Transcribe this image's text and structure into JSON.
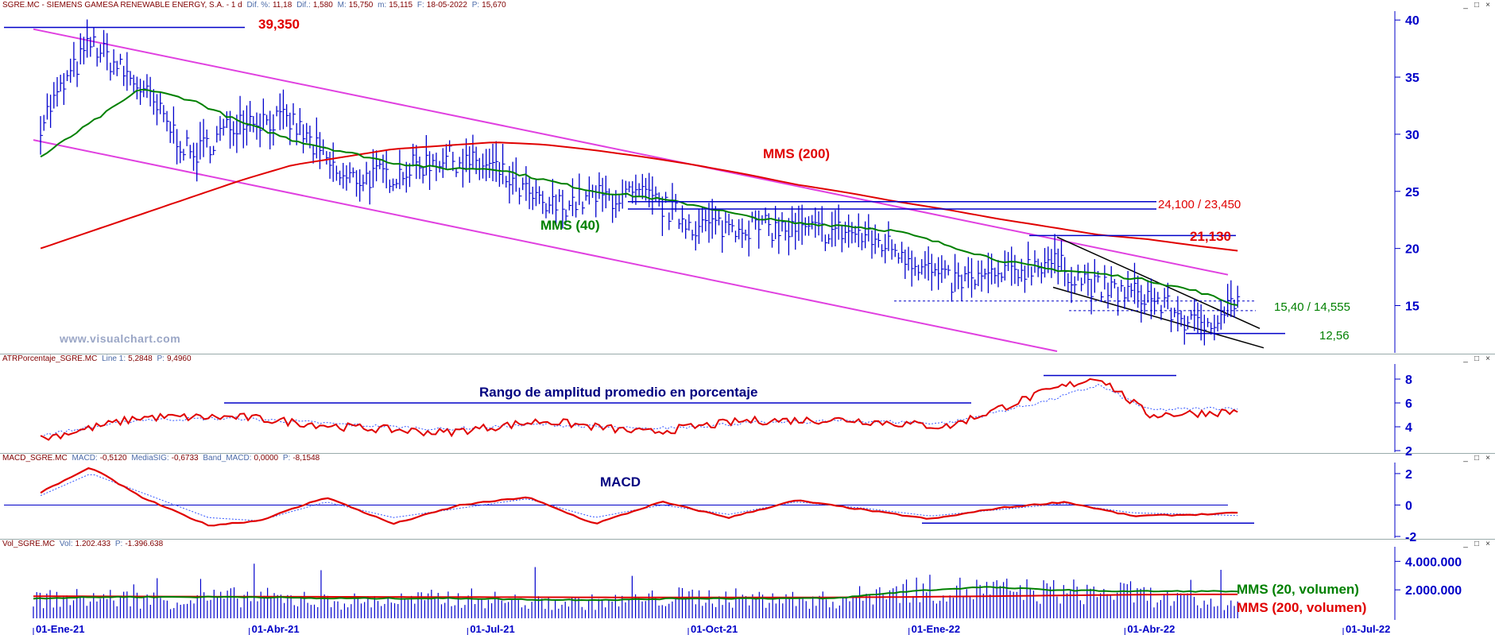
{
  "panes": [
    {
      "id": "price",
      "header": {
        "title": "SGRE.MC - SIEMENS GAMESA RENEWABLE ENERGY, S.A. - 1 d",
        "items": [
          {
            "label": "Dif. %:",
            "value": "11,18"
          },
          {
            "label": "Dif.:",
            "value": "1,580"
          },
          {
            "label": "M:",
            "value": "15,750"
          },
          {
            "label": "m:",
            "value": "15,115"
          },
          {
            "label": "F:",
            "value": "18-05-2022"
          },
          {
            "label": "P:",
            "value": "15,670"
          }
        ]
      },
      "y_ticks": [
        "40",
        "35",
        "30",
        "25",
        "20",
        "15"
      ]
    },
    {
      "id": "atr",
      "header": {
        "title": "ATRPorcentaje_SGRE.MC",
        "items": [
          {
            "label": "Line 1:",
            "value": "5,2848"
          },
          {
            "label": "P:",
            "value": "9,4960"
          }
        ]
      },
      "y_ticks": [
        "8",
        "6",
        "4",
        "2"
      ]
    },
    {
      "id": "macd",
      "header": {
        "title": "MACD_SGRE.MC",
        "items": [
          {
            "label": "MACD:",
            "value": "-0,5120"
          },
          {
            "label": "MediaSIG:",
            "value": "-0,6733"
          },
          {
            "label": "Band_MACD:",
            "value": "0,0000"
          },
          {
            "label": "P:",
            "value": "-8,1548"
          }
        ]
      },
      "y_ticks": [
        "2",
        "0",
        "-2"
      ]
    },
    {
      "id": "volume",
      "header": {
        "title": "Vol_SGRE.MC",
        "items": [
          {
            "label": "Vol:",
            "value": "1.202.433"
          },
          {
            "label": "P:",
            "value": "-1.396.638"
          }
        ]
      },
      "y_ticks": [
        "4.000.000",
        "2.000.000"
      ]
    }
  ],
  "window_buttons": [
    "_",
    "□",
    "×"
  ],
  "x_axis_labels": [
    "01-Ene-21",
    "01-Abr-21",
    "01-Jul-21",
    "01-Oct-21",
    "01-Ene-22",
    "01-Abr-22",
    "01-Jul-22"
  ],
  "watermark": "www.visualchart.com",
  "annotations": {
    "price_top": "39,350",
    "mms200": "MMS (200)",
    "mms40": "MMS (40)",
    "resistance": "24,100 / 23,450",
    "level_21": "21,130",
    "support": "15,40 / 14,555",
    "low": "12,56",
    "atr_title": "Rango de amplitud promedio en porcentaje",
    "macd_title": "MACD",
    "vol_mms20": "MMS (20, volumen)",
    "vol_mms200": "MMS (200, volumen)"
  },
  "colors": {
    "price_bars": "#0000cc",
    "mms40": "#008000",
    "mms200": "#e00000",
    "channel": "#e040e0",
    "levels": "#0000c8",
    "indicator_main": "#e00000",
    "indicator_signal": "#3355ff"
  },
  "chart_data": [
    {
      "type": "line",
      "title": "SGRE.MC - SIEMENS GAMESA RENEWABLE ENERGY, S.A. - 1 d",
      "x": [
        "2021-01-04",
        "2021-01-25",
        "2021-02-15",
        "2021-03-08",
        "2021-03-29",
        "2021-04-19",
        "2021-05-10",
        "2021-05-31",
        "2021-06-21",
        "2021-07-12",
        "2021-08-02",
        "2021-08-23",
        "2021-09-13",
        "2021-10-04",
        "2021-10-25",
        "2021-11-15",
        "2021-12-06",
        "2021-12-27",
        "2022-01-17",
        "2022-02-07",
        "2022-02-28",
        "2022-03-21",
        "2022-04-11",
        "2022-05-02",
        "2022-05-18"
      ],
      "series": [
        {
          "name": "",
          "values": [
            31.0,
            38.0,
            34.0,
            28.0,
            31.5,
            31.0,
            26.0,
            26.5,
            28.0,
            27.0,
            23.5,
            24.5,
            24.5,
            22.0,
            22.0,
            21.5,
            21.5,
            20.0,
            17.0,
            17.5,
            19.0,
            16.5,
            15.8,
            13.0,
            15.67
          ]
        },
        {
          "name": "MMS (40)",
          "values": [
            28.0,
            31.0,
            34.0,
            33.0,
            31.0,
            29.5,
            28.5,
            27.5,
            27.0,
            27.0,
            26.0,
            25.0,
            24.5,
            23.8,
            22.8,
            22.2,
            22.0,
            21.5,
            20.3,
            19.0,
            18.2,
            17.8,
            17.2,
            16.2,
            15.0
          ]
        },
        {
          "name": "MMS (200)",
          "values": [
            20.0,
            21.5,
            23.0,
            24.5,
            26.0,
            27.3,
            28.0,
            28.7,
            29.0,
            29.3,
            29.1,
            28.6,
            28.0,
            27.3,
            26.5,
            25.6,
            24.9,
            24.1,
            23.4,
            22.6,
            21.9,
            21.2,
            20.8,
            20.2,
            19.8
          ]
        }
      ],
      "ylim": [
        11,
        40.5
      ],
      "levels": [
        39.35,
        24.1,
        23.45,
        21.13,
        15.4,
        14.555,
        12.56
      ],
      "grid": false
    },
    {
      "type": "line",
      "title": "ATRPorcentaje_SGRE.MC",
      "x": [
        "2021-01-04",
        "2021-02-15",
        "2021-03-29",
        "2021-05-10",
        "2021-06-21",
        "2021-08-02",
        "2021-09-13",
        "2021-10-25",
        "2021-12-06",
        "2022-01-17",
        "2022-02-28",
        "2022-03-21",
        "2022-04-11",
        "2022-05-18"
      ],
      "series": [
        {
          "name": "",
          "values": [
            3.0,
            4.8,
            4.8,
            4.0,
            3.5,
            4.5,
            3.5,
            4.5,
            4.6,
            4.0,
            7.0,
            8.2,
            5.0,
            5.28
          ]
        },
        {
          "name": "",
          "values": [
            3.3,
            4.6,
            4.7,
            4.2,
            3.8,
            4.2,
            3.8,
            4.3,
            4.5,
            4.3,
            6.2,
            7.5,
            5.4,
            5.6
          ]
        }
      ],
      "ylim": [
        2,
        9
      ]
    },
    {
      "type": "line",
      "title": "MACD_SGRE.MC",
      "x": [
        "2021-01-04",
        "2021-01-25",
        "2021-02-15",
        "2021-03-15",
        "2021-04-05",
        "2021-05-03",
        "2021-05-31",
        "2021-06-28",
        "2021-07-26",
        "2021-08-23",
        "2021-09-20",
        "2021-10-18",
        "2021-11-15",
        "2021-12-13",
        "2022-01-10",
        "2022-02-07",
        "2022-03-07",
        "2022-04-04",
        "2022-05-02",
        "2022-05-18"
      ],
      "series": [
        {
          "name": "",
          "values": [
            0.8,
            2.4,
            0.5,
            -1.3,
            -1.0,
            0.5,
            -1.2,
            0.0,
            0.5,
            -1.2,
            0.2,
            -0.8,
            0.3,
            -0.3,
            -0.9,
            -0.2,
            0.2,
            -0.7,
            -0.6,
            -0.51
          ]
        },
        {
          "name": "",
          "values": [
            0.6,
            2.0,
            0.8,
            -0.8,
            -1.0,
            0.2,
            -0.8,
            -0.2,
            0.4,
            -0.8,
            0.0,
            -0.6,
            0.2,
            -0.2,
            -0.7,
            -0.3,
            0.1,
            -0.5,
            -0.6,
            -0.67
          ]
        }
      ],
      "ylim": [
        -2,
        2.5
      ]
    },
    {
      "type": "bar",
      "title": "Vol_SGRE.MC",
      "categories": [
        "2021-01",
        "2021-02",
        "2021-03",
        "2021-04",
        "2021-05",
        "2021-06",
        "2021-07",
        "2021-08",
        "2021-09",
        "2021-10",
        "2021-11",
        "2021-12",
        "2022-01",
        "2022-02",
        "2022-03",
        "2022-04",
        "2022-05"
      ],
      "series": [
        {
          "name": "",
          "values": [
            1500000,
            1600000,
            1400000,
            1700000,
            1300000,
            1400000,
            1600000,
            1200000,
            1300000,
            1700000,
            1500000,
            1400000,
            2300000,
            2200000,
            2100000,
            2000000,
            1202433
          ]
        },
        {
          "name": "MMS (20, volumen)",
          "values": [
            1400000,
            1500000,
            1500000,
            1500000,
            1400000,
            1400000,
            1400000,
            1300000,
            1300000,
            1400000,
            1400000,
            1400000,
            1900000,
            2200000,
            2000000,
            1900000,
            1900000
          ]
        },
        {
          "name": "MMS (200, volumen)",
          "values": [
            1550000,
            1540000,
            1530000,
            1520000,
            1510000,
            1500000,
            1490000,
            1480000,
            1470000,
            1460000,
            1460000,
            1470000,
            1500000,
            1550000,
            1600000,
            1650000,
            1680000
          ]
        }
      ],
      "ylim": [
        0,
        4800000
      ]
    }
  ]
}
